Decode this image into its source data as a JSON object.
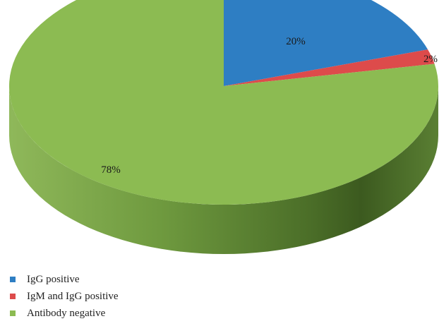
{
  "chart_data": {
    "type": "pie",
    "style": "3d",
    "categories": [
      "IgG positive",
      "IgM and IgG positive",
      "Antibody negative"
    ],
    "values": [
      20,
      2,
      78
    ],
    "value_labels": [
      "20%",
      "2%",
      "78%"
    ],
    "colors": [
      "#2e7ec3",
      "#dd4b4b",
      "#8cbb52"
    ],
    "legend_position": "bottom-left"
  }
}
